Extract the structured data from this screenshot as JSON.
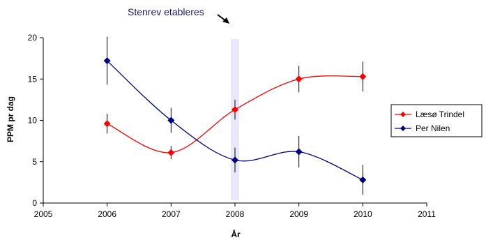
{
  "chart_data": {
    "type": "line",
    "title": "",
    "xlabel": "År",
    "ylabel": "PPM pr dag",
    "xlim": [
      2005,
      2011
    ],
    "ylim": [
      0,
      20
    ],
    "xticks": [
      2005,
      2006,
      2007,
      2008,
      2009,
      2010,
      2011
    ],
    "yticks": [
      0,
      5,
      10,
      15,
      20
    ],
    "grid": false,
    "legend_position": "right",
    "series": [
      {
        "name": "Læsø Trindel",
        "color": "#ff0000",
        "x": [
          2006,
          2007,
          2008,
          2009,
          2010
        ],
        "y": [
          9.6,
          6.1,
          11.3,
          15.0,
          15.3
        ],
        "err": [
          1.2,
          0.8,
          1.2,
          1.6,
          1.8
        ]
      },
      {
        "name": "Per Nilen",
        "color": "#000080",
        "x": [
          2006,
          2007,
          2008,
          2009,
          2010
        ],
        "y": [
          17.2,
          10.0,
          5.2,
          6.2,
          2.8
        ],
        "err": [
          2.9,
          1.5,
          1.5,
          1.9,
          1.8
        ]
      }
    ],
    "annotation": {
      "text": "Stenrev etableres",
      "x": 2008,
      "color": "#1a1a6e",
      "band_color": "#e8e8fa"
    }
  }
}
